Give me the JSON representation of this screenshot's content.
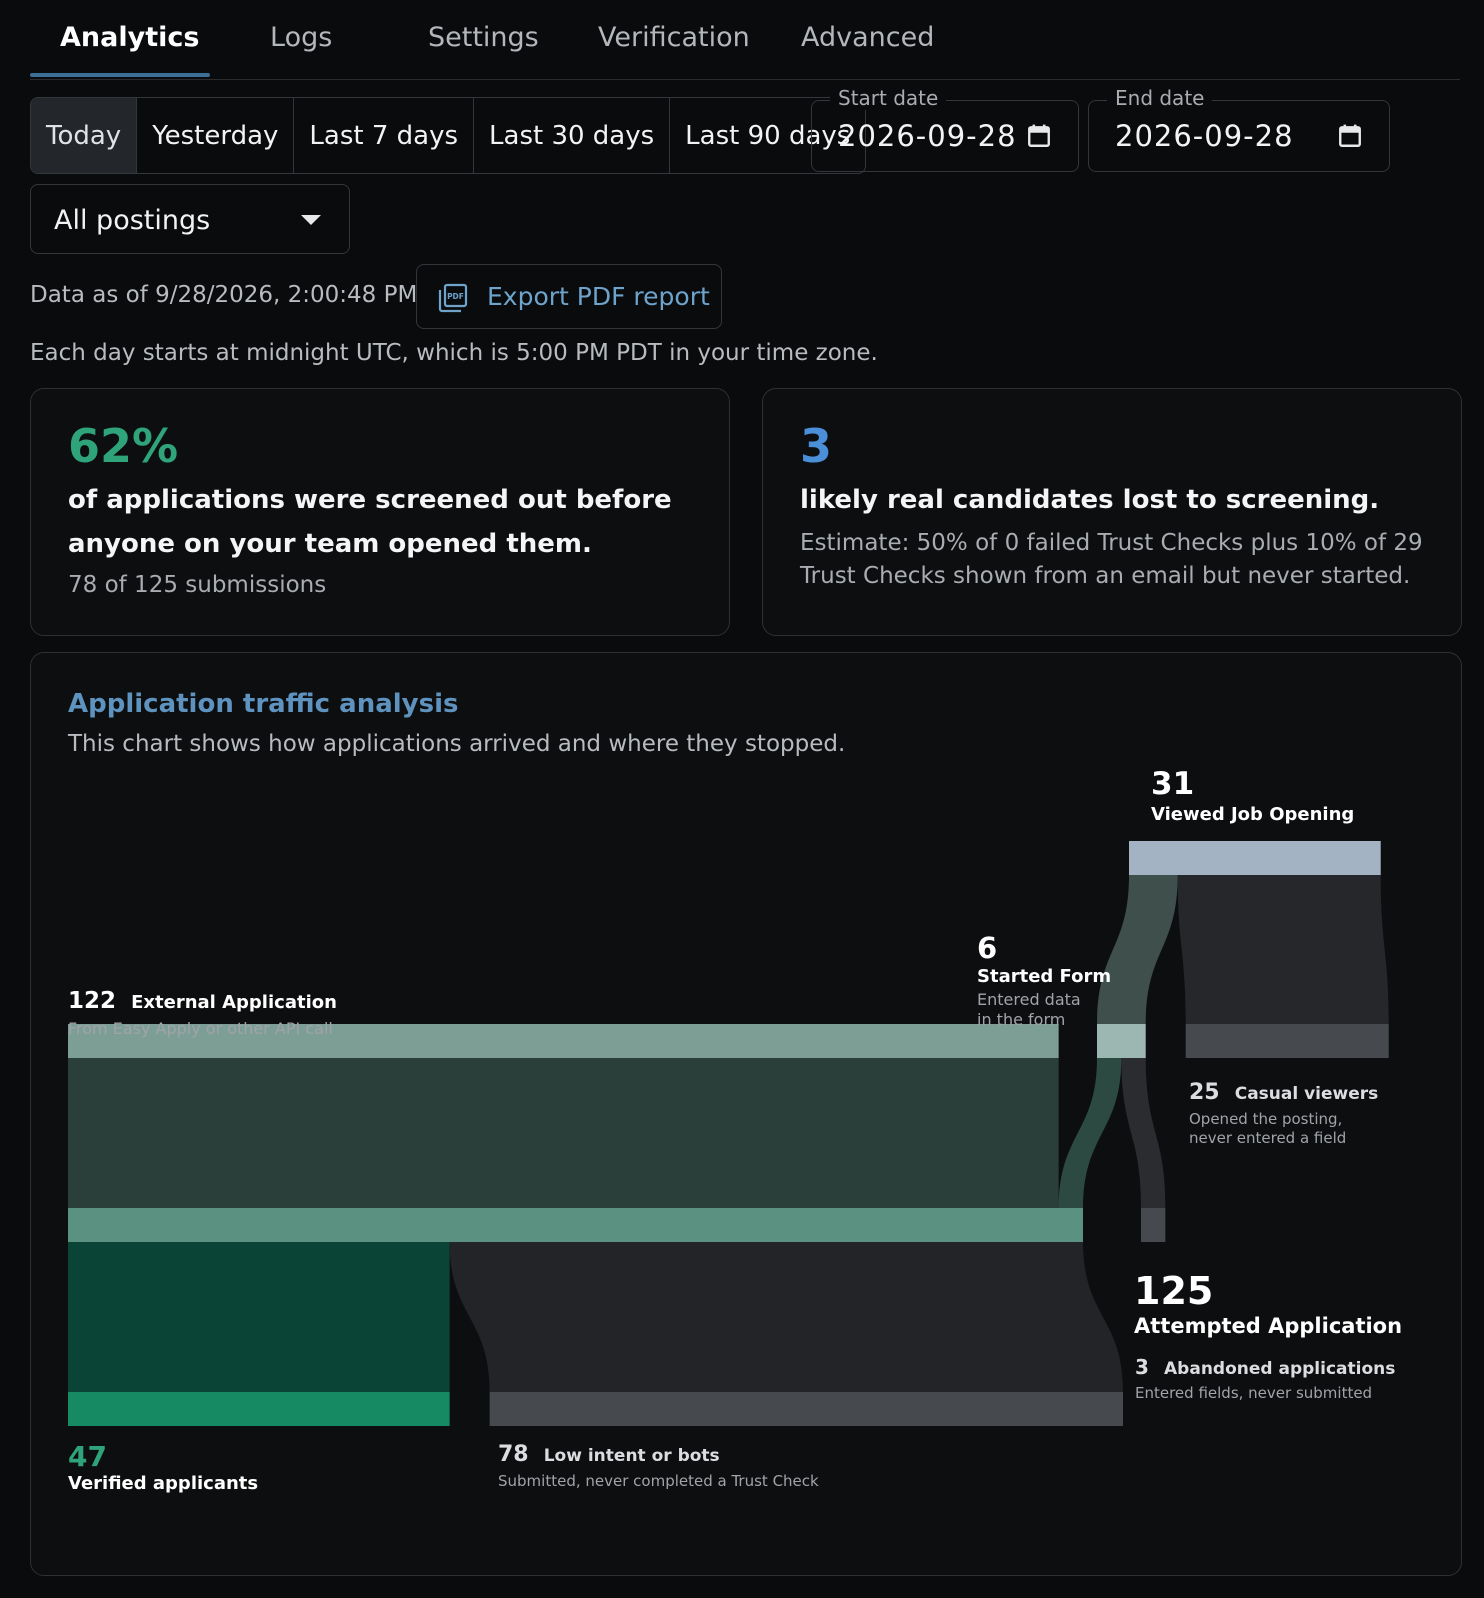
{
  "tabs": [
    {
      "label": "Analytics",
      "active": true
    },
    {
      "label": "Logs"
    },
    {
      "label": "Settings"
    },
    {
      "label": "Verification"
    },
    {
      "label": "Advanced"
    }
  ],
  "date_ranges": [
    {
      "label": "Today",
      "selected": true
    },
    {
      "label": "Yesterday"
    },
    {
      "label": "Last 7 days"
    },
    {
      "label": "Last 30 days"
    },
    {
      "label": "Last 90 days"
    }
  ],
  "start_date": {
    "label": "Start date",
    "value": "2026-09-28"
  },
  "end_date": {
    "label": "End date",
    "value": "2026-09-28"
  },
  "posting_filter": {
    "value": "All postings"
  },
  "data_as_of": "Data as of 9/28/2026, 2:00:48 PM",
  "export_button": "Export PDF report",
  "export_icon_text": "PDF",
  "timezone_note": "Each day starts at midnight UTC, which is 5:00 PM PDT in your time zone.",
  "stat_screened": {
    "value": "62%",
    "line1": "of applications were screened out before",
    "line2": "anyone on your team opened them.",
    "detail": "78 of 125 submissions",
    "color": "#2fa37a"
  },
  "stat_lost": {
    "value": "3",
    "line1": "likely real candidates lost to screening.",
    "detail1": "Estimate: 50% of 0 failed Trust Checks plus 10% of 29",
    "detail2": "Trust Checks shown from an email but never started.",
    "color": "#4a8fd8"
  },
  "traffic_chart": {
    "title": "Application traffic analysis",
    "subtitle": "This chart shows how applications arrived and where they stopped."
  },
  "chart_data": {
    "type": "sankey",
    "nodes": [
      {
        "id": "external",
        "value": 122,
        "name": "External Application",
        "desc": "From Easy Apply or other API call"
      },
      {
        "id": "viewed",
        "value": 31,
        "name": "Viewed Job Opening"
      },
      {
        "id": "started",
        "value": 6,
        "name": "Started Form",
        "desc1": "Entered data",
        "desc2": "in the form"
      },
      {
        "id": "casual",
        "value": 25,
        "name": "Casual viewers",
        "desc1": "Opened the posting,",
        "desc2": "never entered a field"
      },
      {
        "id": "attempted",
        "value": 125,
        "name": "Attempted Application"
      },
      {
        "id": "abandoned",
        "value": 3,
        "name": "Abandoned applications",
        "desc": "Entered fields, never submitted"
      },
      {
        "id": "verified",
        "value": 47,
        "name": "Verified applicants"
      },
      {
        "id": "lowintent",
        "value": 78,
        "name": "Low intent or bots",
        "desc": "Submitted, never completed a Trust Check"
      }
    ],
    "links": [
      {
        "source": "viewed",
        "target": "started",
        "value": 6
      },
      {
        "source": "viewed",
        "target": "casual",
        "value": 25
      },
      {
        "source": "external",
        "target": "attempted",
        "value": 122
      },
      {
        "source": "started",
        "target": "attempted",
        "value": 3
      },
      {
        "source": "started",
        "target": "abandoned",
        "value": 3
      },
      {
        "source": "attempted",
        "target": "verified",
        "value": 47
      },
      {
        "source": "attempted",
        "target": "lowintent",
        "value": 78
      }
    ],
    "colors": {
      "external": "#7d9e95",
      "viewed": "#a3b3c3",
      "started": "#9cb6b1",
      "casual": "#46494e",
      "attempted": "#5a9180",
      "abandoned": "#46494e",
      "verified": "#168a63",
      "lowintent": "#46494e"
    }
  }
}
